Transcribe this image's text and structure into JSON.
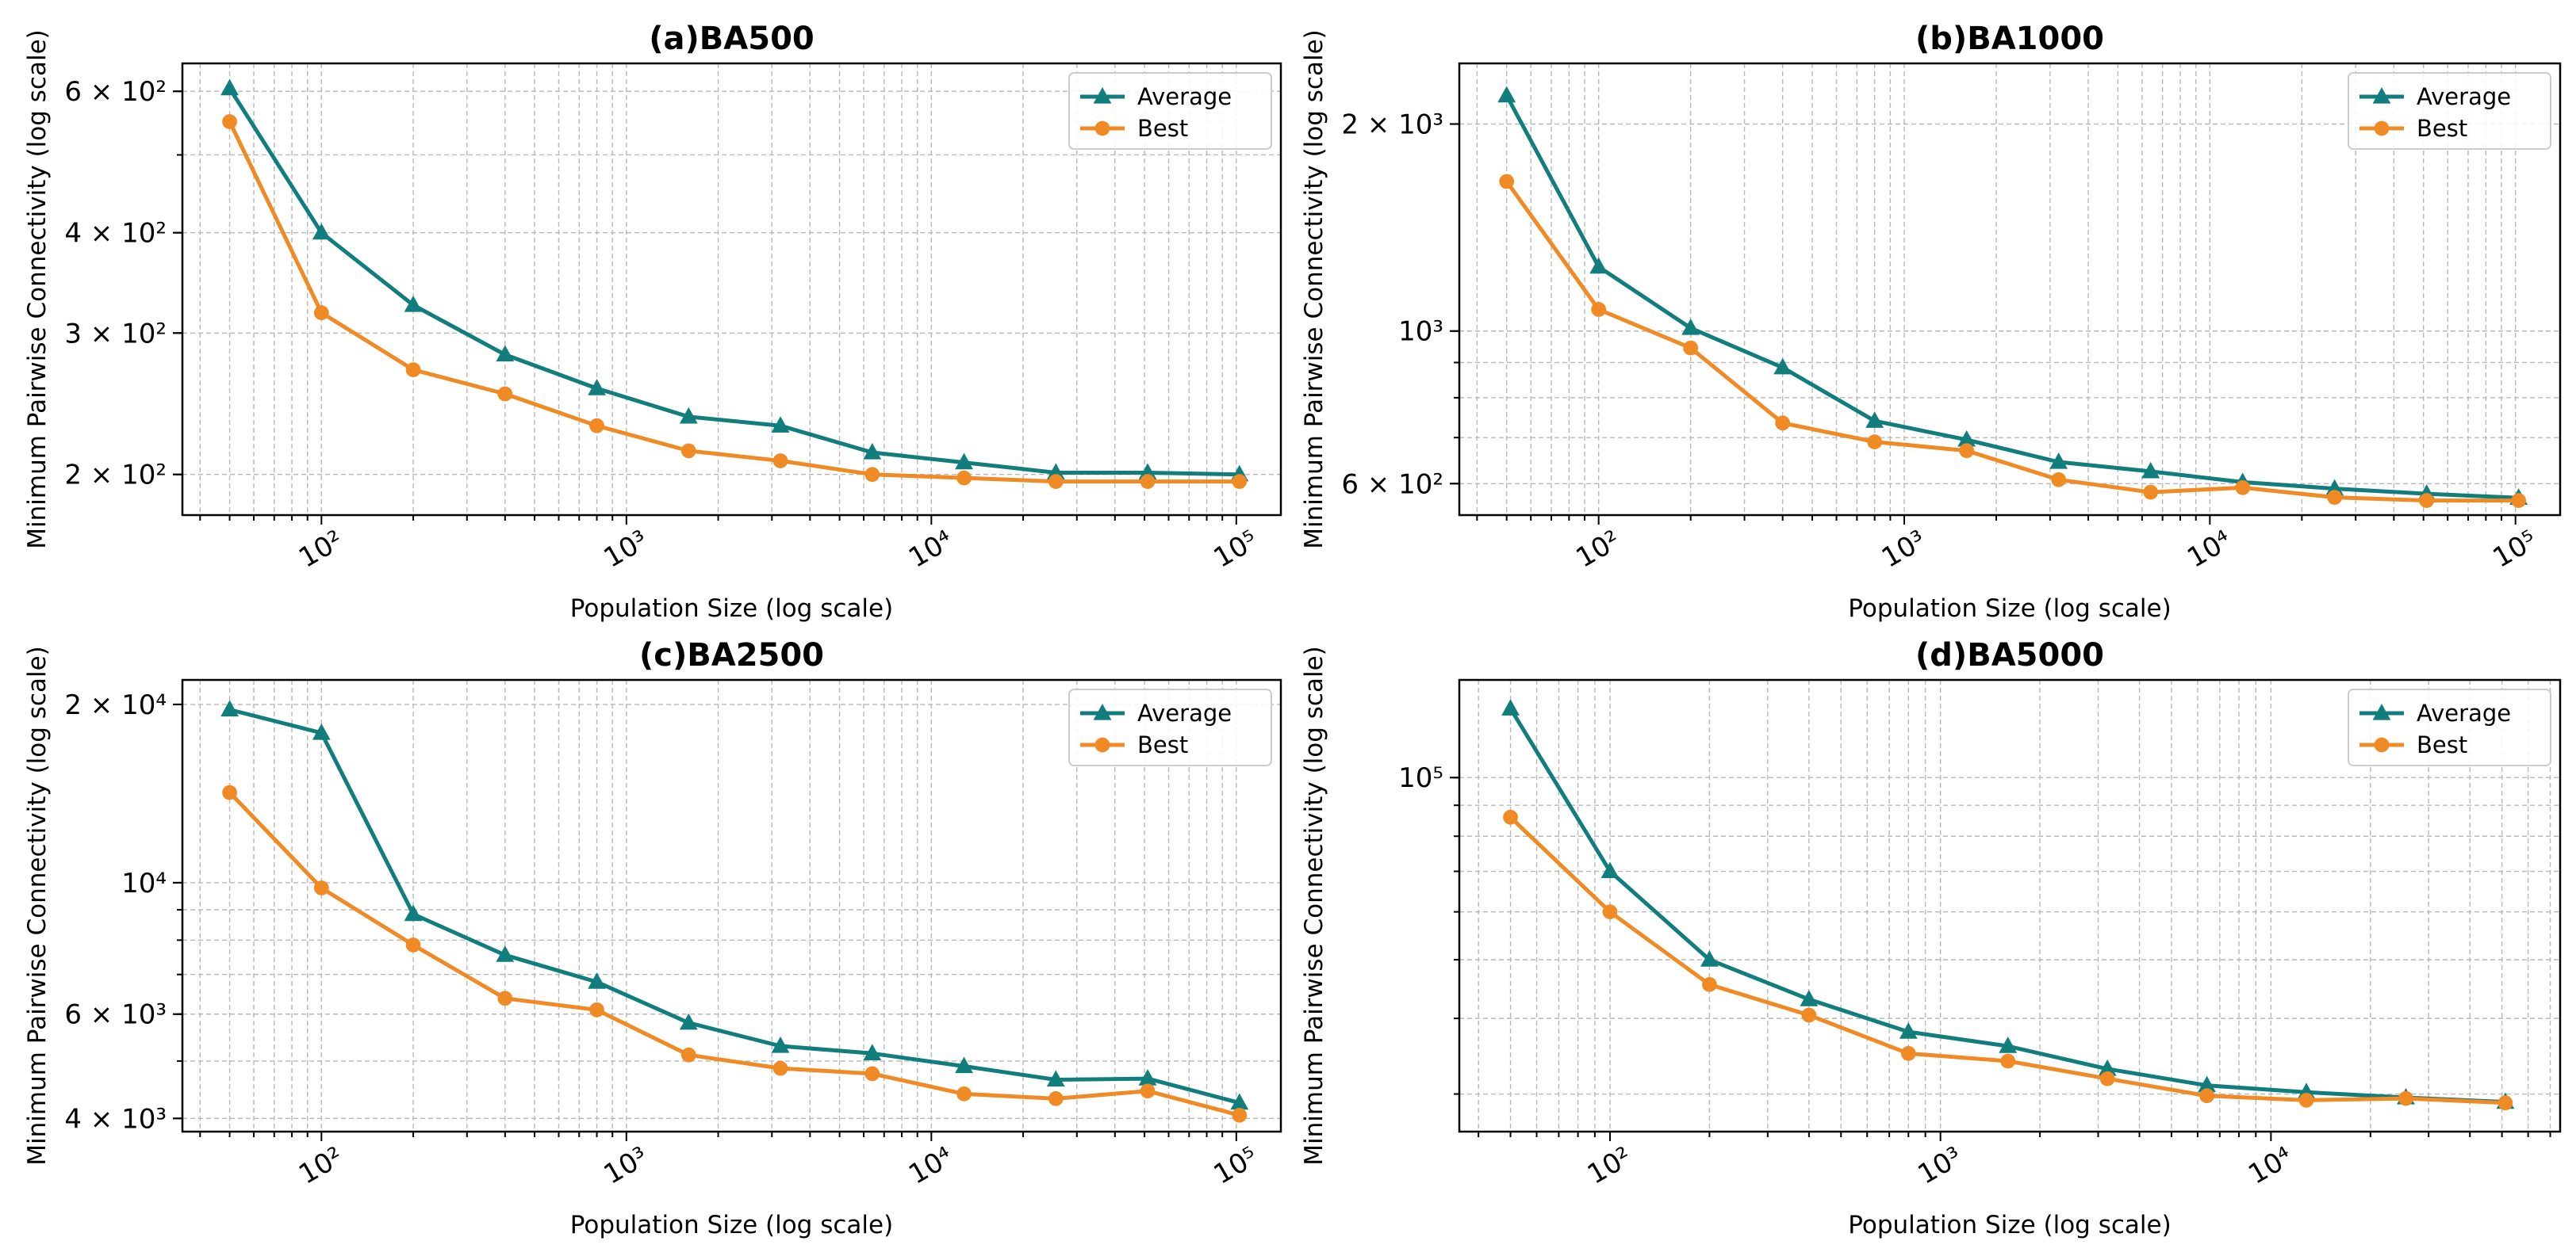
{
  "colors": {
    "average": "#127d7d",
    "best": "#f08a24",
    "grid": "#b8b8b8"
  },
  "chart_data": [
    {
      "type": "line",
      "title": "(a)BA500",
      "xlabel": "Population Size (log scale)",
      "ylabel": "Minimum Pairwise Connectivity (log scale)",
      "xscale": "log",
      "yscale": "log",
      "xlim": [
        35,
        140000
      ],
      "ylim": [
        178,
        650
      ],
      "legend": "top-right",
      "grid": true,
      "x": [
        50,
        100,
        200,
        400,
        800,
        1600,
        3200,
        6400,
        12800,
        25600,
        51200,
        102400
      ],
      "xticks": [
        {
          "value": 100,
          "label": "10²"
        },
        {
          "value": 1000,
          "label": "10³"
        },
        {
          "value": 10000,
          "label": "10⁴"
        },
        {
          "value": 100000,
          "label": "10⁵"
        }
      ],
      "yticks": [
        {
          "value": 200,
          "label": "2 × 10²"
        },
        {
          "value": 300,
          "label": "3 × 10²"
        },
        {
          "value": 400,
          "label": "4 × 10²"
        },
        {
          "value": 600,
          "label": "6 × 10²"
        }
      ],
      "series": [
        {
          "name": "Average",
          "marker": "triangle",
          "values": [
            605,
            400,
            325,
            282,
            256,
            236,
            230,
            213,
            207,
            201,
            201,
            200
          ]
        },
        {
          "name": "Best",
          "marker": "circle",
          "values": [
            550,
            318,
            270,
            252,
            230,
            214,
            208,
            200,
            198,
            196,
            196,
            196
          ]
        }
      ]
    },
    {
      "type": "line",
      "title": "(b)BA1000",
      "xlabel": "Population Size (log scale)",
      "ylabel": "Minimum Pairwise Connectivity (log scale)",
      "xscale": "log",
      "yscale": "log",
      "xlim": [
        35,
        140000
      ],
      "ylim": [
        540,
        2450
      ],
      "legend": "top-right",
      "grid": true,
      "x": [
        50,
        100,
        200,
        400,
        800,
        1600,
        3200,
        6400,
        12800,
        25600,
        51200,
        102400
      ],
      "xticks": [
        {
          "value": 100,
          "label": "10²"
        },
        {
          "value": 1000,
          "label": "10³"
        },
        {
          "value": 10000,
          "label": "10⁴"
        },
        {
          "value": 100000,
          "label": "10⁵"
        }
      ],
      "yticks": [
        {
          "value": 600,
          "label": "6 × 10²"
        },
        {
          "value": 1000,
          "label": "10³"
        },
        {
          "value": 2000,
          "label": "2 × 10³"
        }
      ],
      "series": [
        {
          "name": "Average",
          "marker": "triangle",
          "values": [
            2200,
            1240,
            1010,
            885,
            740,
            695,
            645,
            625,
            603,
            590,
            580,
            572
          ]
        },
        {
          "name": "Best",
          "marker": "circle",
          "values": [
            1650,
            1075,
            945,
            735,
            690,
            670,
            608,
            583,
            592,
            573,
            567,
            567
          ]
        }
      ]
    },
    {
      "type": "line",
      "title": "(c)BA2500",
      "xlabel": "Population Size (log scale)",
      "ylabel": "Minimum Pairwise Connectivity (log scale)",
      "xscale": "log",
      "yscale": "log",
      "xlim": [
        35,
        140000
      ],
      "ylim": [
        3800,
        22000
      ],
      "legend": "top-right",
      "grid": true,
      "x": [
        50,
        100,
        200,
        400,
        800,
        1600,
        3200,
        6400,
        12800,
        25600,
        51200,
        102400
      ],
      "xticks": [
        {
          "value": 100,
          "label": "10²"
        },
        {
          "value": 1000,
          "label": "10³"
        },
        {
          "value": 10000,
          "label": "10⁴"
        },
        {
          "value": 100000,
          "label": "10⁵"
        }
      ],
      "yticks": [
        {
          "value": 4000,
          "label": "4 × 10³"
        },
        {
          "value": 6000,
          "label": "6 × 10³"
        },
        {
          "value": 10000,
          "label": "10⁴"
        },
        {
          "value": 20000,
          "label": "2 × 10⁴"
        }
      ],
      "series": [
        {
          "name": "Average",
          "marker": "triangle",
          "values": [
            19600,
            17900,
            8850,
            7550,
            6800,
            5800,
            5300,
            5150,
            4900,
            4650,
            4670,
            4250
          ]
        },
        {
          "name": "Best",
          "marker": "circle",
          "values": [
            14200,
            9800,
            7850,
            6380,
            6100,
            5120,
            4860,
            4760,
            4400,
            4320,
            4450,
            4050
          ]
        }
      ]
    },
    {
      "type": "line",
      "title": "(d)BA5000",
      "xlabel": "Population Size (log scale)",
      "ylabel": "Minimum Pairwise Connectivity (log scale)",
      "xscale": "log",
      "yscale": "log",
      "xlim": [
        35,
        75000
      ],
      "ylim": [
        26000,
        145000
      ],
      "legend": "top-right",
      "grid": true,
      "x": [
        50,
        100,
        200,
        400,
        800,
        1600,
        3200,
        6400,
        12800,
        25600,
        51200
      ],
      "xticks": [
        {
          "value": 100,
          "label": "10²"
        },
        {
          "value": 1000,
          "label": "10³"
        },
        {
          "value": 10000,
          "label": "10⁴"
        }
      ],
      "yticks": [
        {
          "value": 100000,
          "label": "10⁵"
        }
      ],
      "series": [
        {
          "name": "Average",
          "marker": "triangle",
          "values": [
            130000,
            70000,
            50000,
            43000,
            38000,
            36000,
            33000,
            31000,
            30200,
            29600,
            29100
          ]
        },
        {
          "name": "Best",
          "marker": "circle",
          "values": [
            86000,
            60000,
            45500,
            40500,
            35000,
            34000,
            31800,
            29800,
            29300,
            29500,
            29000
          ]
        }
      ]
    }
  ]
}
